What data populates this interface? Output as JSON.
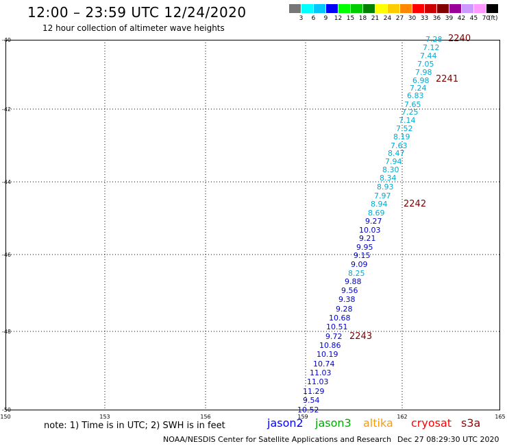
{
  "header": {
    "title": "12:00  –  23:59 UTC 12/24/2020",
    "subtitle": "12 hour collection of altimeter wave heights"
  },
  "color_scale": {
    "colors": [
      "#777777",
      "#00ffff",
      "#00c8ff",
      "#0000ff",
      "#00ff00",
      "#00cc00",
      "#008000",
      "#ffff00",
      "#ffcc00",
      "#ff8800",
      "#ff0000",
      "#cc0000",
      "#800000",
      "#990099",
      "#cc99ff",
      "#ff99ff",
      "#000000"
    ],
    "labels": [
      "3",
      "6",
      "9",
      "12",
      "15",
      "18",
      "21",
      "24",
      "27",
      "30",
      "33",
      "36",
      "39",
      "42",
      "45",
      "70",
      "(ft)"
    ]
  },
  "axes": {
    "y_ticks": [
      "-40",
      "-42",
      "-44",
      "-46",
      "-48",
      "-50"
    ],
    "x_ticks": [
      "150",
      "153",
      "156",
      "159",
      "162",
      "165"
    ]
  },
  "observations": [
    {
      "v": "7.28",
      "c": "#00aad4",
      "s": "jason3"
    },
    {
      "v": "7.12",
      "c": "#00aad4",
      "s": "jason3"
    },
    {
      "v": "7.44",
      "c": "#00aad4",
      "s": "jason3"
    },
    {
      "v": "7.05",
      "c": "#00aad4",
      "s": "jason3"
    },
    {
      "v": "7.98",
      "c": "#00aad4",
      "s": "jason3"
    },
    {
      "v": "6.98",
      "c": "#00aad4",
      "s": "jason3"
    },
    {
      "v": "7.24",
      "c": "#00aad4",
      "s": "jason3"
    },
    {
      "v": "6.83",
      "c": "#00aad4",
      "s": "jason3"
    },
    {
      "v": "7.65",
      "c": "#00aad4",
      "s": "jason3"
    },
    {
      "v": "7.25",
      "c": "#00aad4",
      "s": "jason3"
    },
    {
      "v": "7.14",
      "c": "#00aad4",
      "s": "jason3"
    },
    {
      "v": "7.52",
      "c": "#00aad4",
      "s": "jason3"
    },
    {
      "v": "8.19",
      "c": "#00aad4",
      "s": "jason3"
    },
    {
      "v": "7.63",
      "c": "#00aad4",
      "s": "jason3"
    },
    {
      "v": "8.47",
      "c": "#00aad4",
      "s": "jason3"
    },
    {
      "v": "7.94",
      "c": "#00aad4",
      "s": "jason3"
    },
    {
      "v": "8.30",
      "c": "#00aad4",
      "s": "jason3"
    },
    {
      "v": "8.34",
      "c": "#00aad4",
      "s": "jason3"
    },
    {
      "v": "8.93",
      "c": "#00aad4",
      "s": "jason3"
    },
    {
      "v": "7.97",
      "c": "#00aad4",
      "s": "jason3"
    },
    {
      "v": "8.94",
      "c": "#00aad4",
      "s": "jason3"
    },
    {
      "v": "8.69",
      "c": "#00aad4",
      "s": "jason3"
    },
    {
      "v": "9.27",
      "c": "#0000c8",
      "s": "jason3"
    },
    {
      "v": "10.03",
      "c": "#0000c8",
      "s": "jason3"
    },
    {
      "v": "9.21",
      "c": "#0000c8",
      "s": "jason3"
    },
    {
      "v": "9.95",
      "c": "#0000c8",
      "s": "jason3"
    },
    {
      "v": "9.15",
      "c": "#0000c8",
      "s": "jason3"
    },
    {
      "v": "9.09",
      "c": "#0000c8",
      "s": "jason3"
    },
    {
      "v": "8.25",
      "c": "#00aad4",
      "s": "jason3"
    },
    {
      "v": "9.88",
      "c": "#0000c8",
      "s": "jason3"
    },
    {
      "v": "9.56",
      "c": "#0000c8",
      "s": "jason3"
    },
    {
      "v": "9.38",
      "c": "#0000c8",
      "s": "jason3"
    },
    {
      "v": "9.28",
      "c": "#0000c8",
      "s": "jason3"
    },
    {
      "v": "10.68",
      "c": "#0000c8",
      "s": "jason3"
    },
    {
      "v": "10.51",
      "c": "#0000c8",
      "s": "jason3"
    },
    {
      "v": "9.72",
      "c": "#0000c8",
      "s": "jason3"
    },
    {
      "v": "10.86",
      "c": "#0000c8",
      "s": "jason3"
    },
    {
      "v": "10.19",
      "c": "#0000c8",
      "s": "jason3"
    },
    {
      "v": "10.74",
      "c": "#0000c8",
      "s": "jason3"
    },
    {
      "v": "11.03",
      "c": "#0000c8",
      "s": "jason3"
    },
    {
      "v": "11.03",
      "c": "#0000c8",
      "s": "jason3"
    },
    {
      "v": "11.29",
      "c": "#0000c8",
      "s": "jason3"
    },
    {
      "v": "9.54",
      "c": "#0000c8",
      "s": "jason3"
    },
    {
      "v": "10.52",
      "c": "#0000c8",
      "s": "jason3"
    }
  ],
  "time_labels": [
    "2240",
    "2241",
    "2242",
    "2243"
  ],
  "note": "note:  1) Time is in UTC; 2) SWH is in feet",
  "satellites": [
    {
      "name": "jason2",
      "color": "#0000ff"
    },
    {
      "name": "jason3",
      "color": "#00aa00"
    },
    {
      "name": "altika",
      "color": "#ff9900"
    },
    {
      "name": "cryosat",
      "color": "#ff0000"
    },
    {
      "name": "s3a",
      "color": "#990000"
    }
  ],
  "footer": {
    "credit": "NOAA/NESDIS Center for Satellite Applications and Research",
    "timestamp": "Dec 27 08:29:30 UTC 2020"
  }
}
